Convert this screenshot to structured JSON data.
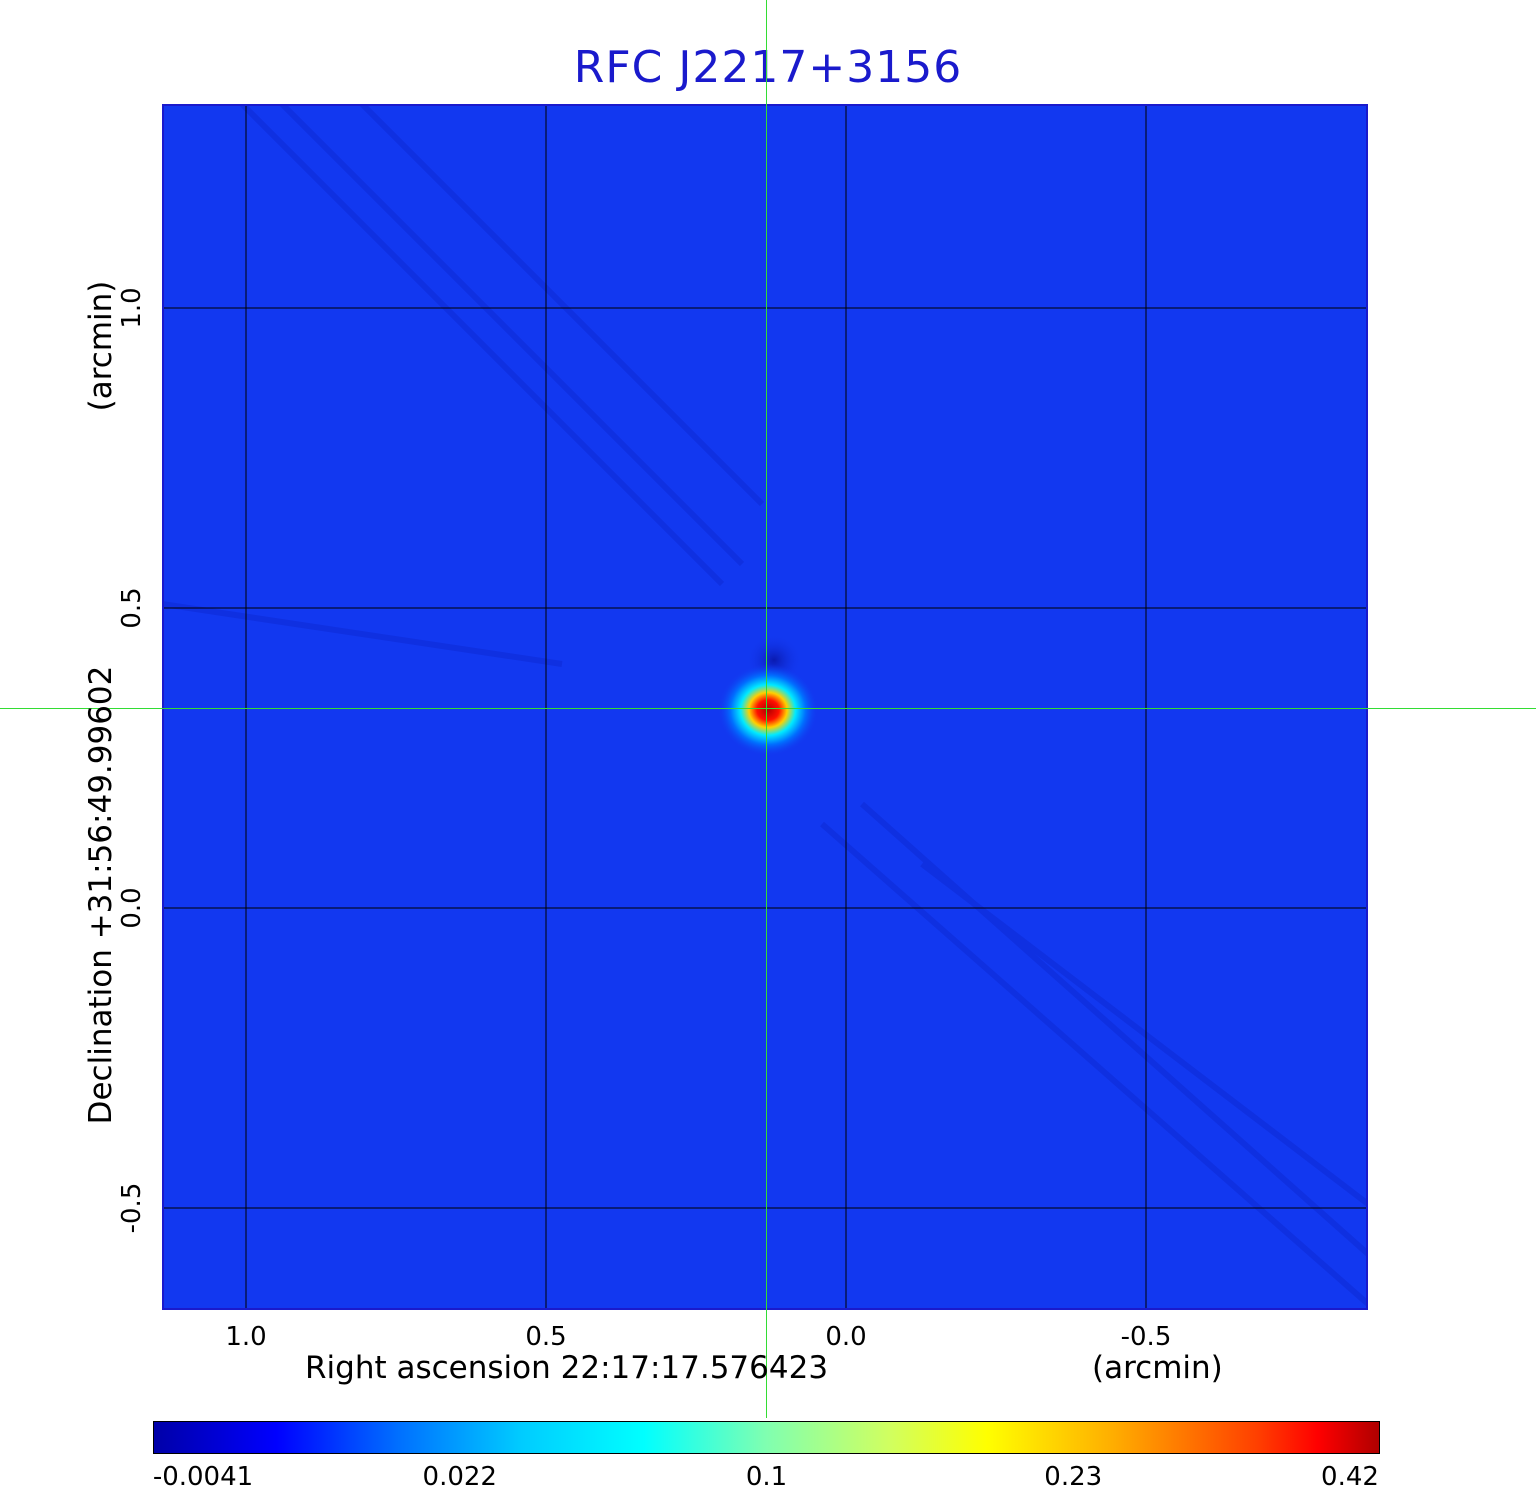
{
  "chart_data": {
    "type": "heatmap",
    "title": "RFC J2217+3156",
    "xlabel": "Right ascension  22:17:17.576423",
    "xunit": "(arcmin)",
    "ylabel": "Declination  +31:56:49.99602",
    "yunit": "(arcmin)",
    "x_ticks": [
      "1.0",
      "0.5",
      "0.0",
      "-0.5"
    ],
    "x_tick_values": [
      1.0,
      0.5,
      0.0,
      -0.5
    ],
    "y_ticks": [
      "1.0",
      "0.5",
      "0.0",
      "-0.5"
    ],
    "y_tick_values": [
      1.0,
      0.5,
      0.0,
      -0.5
    ],
    "xlim": [
      1.14,
      -0.87
    ],
    "ylim": [
      -0.67,
      1.34
    ],
    "grid": true,
    "colormap": "jet",
    "colorbar_ticks": [
      "-0.0041",
      "0.022",
      "0.1",
      "0.23",
      "0.42"
    ],
    "colorbar_range": [
      -0.0041,
      0.42
    ],
    "source": {
      "x": 0.13,
      "y": 0.33,
      "peak": 0.42
    },
    "background_color": "#1238f0",
    "crosshair_color": "#33dd33",
    "title_color": "#1a1acc"
  }
}
